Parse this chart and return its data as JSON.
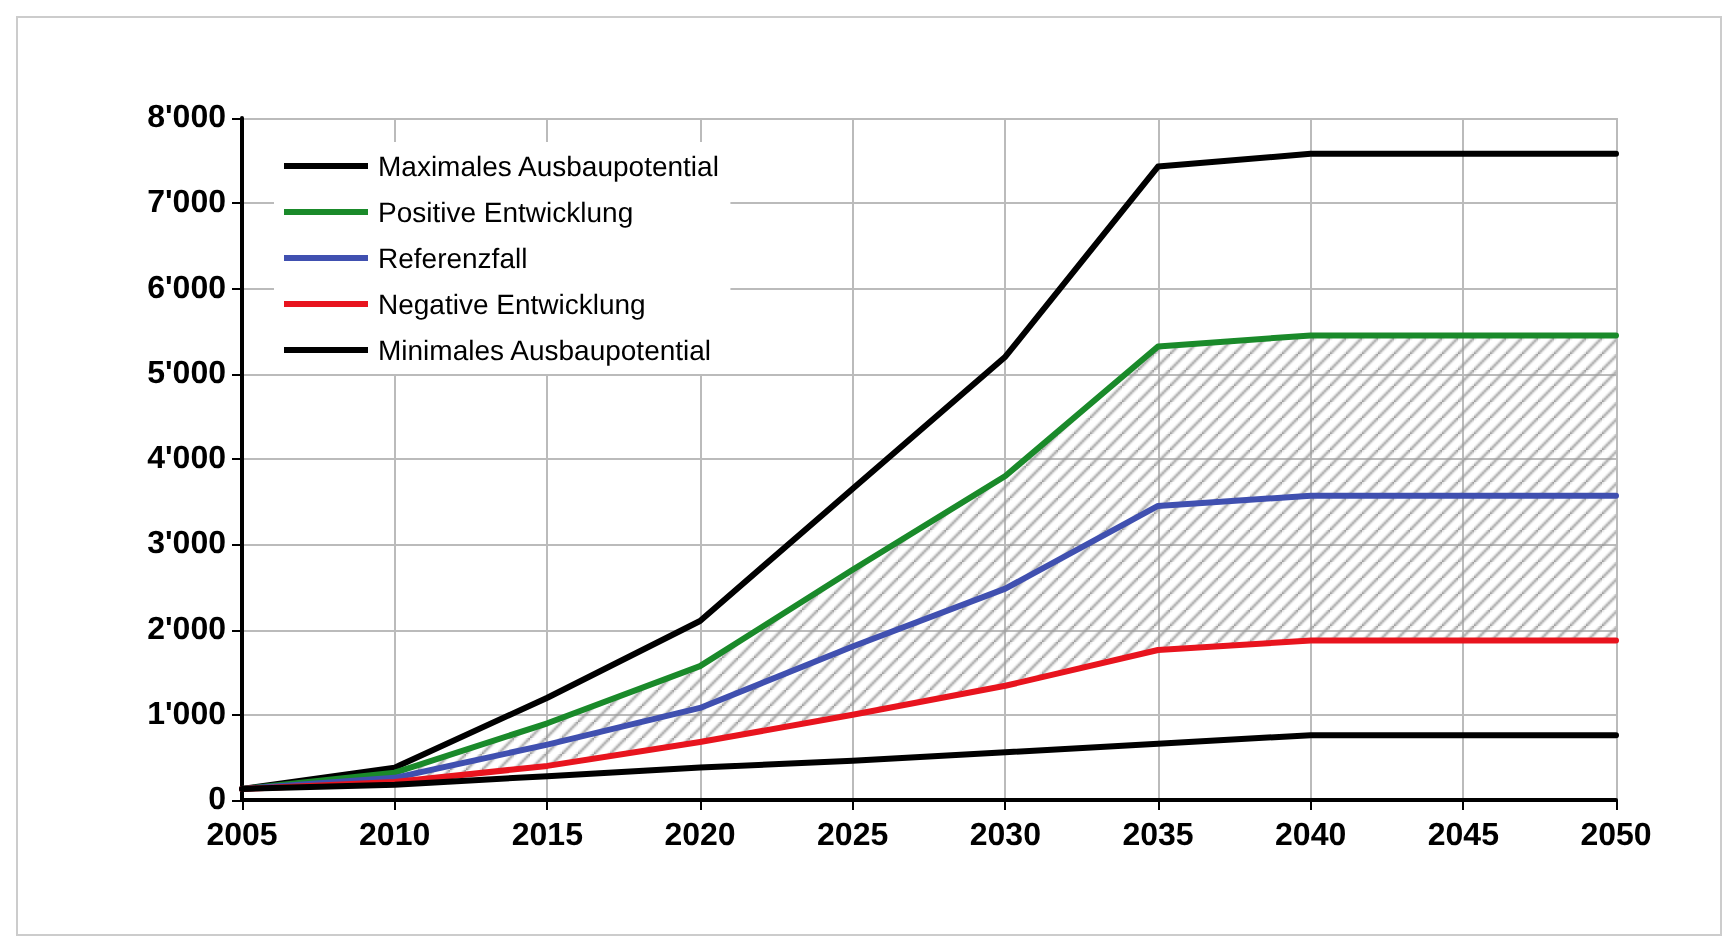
{
  "chart_data": {
    "type": "line",
    "x": [
      2005,
      2010,
      2015,
      2020,
      2025,
      2030,
      2035,
      2040,
      2045,
      2050
    ],
    "series": [
      {
        "name": "Maximales Ausbaupotential",
        "color": "#000000",
        "values": [
          130,
          380,
          1200,
          2100,
          3650,
          5200,
          7430,
          7580,
          7580,
          7580
        ]
      },
      {
        "name": "Positive Entwicklung",
        "color": "#1a8a2a",
        "values": [
          130,
          320,
          900,
          1570,
          2700,
          3800,
          5320,
          5450,
          5450,
          5450
        ]
      },
      {
        "name": "Referenzfall",
        "color": "#4050b0",
        "values": [
          130,
          260,
          650,
          1080,
          1800,
          2480,
          3450,
          3570,
          3570,
          3570
        ],
        "lower": [
          130,
          210,
          400,
          680,
          1000,
          1340,
          1760,
          1870,
          1870,
          1870
        ],
        "upper": [
          130,
          320,
          900,
          1570,
          2700,
          3800,
          5320,
          5450,
          5450,
          5450
        ]
      },
      {
        "name": "Negative Entwicklung",
        "color": "#e8141e",
        "values": [
          130,
          210,
          400,
          680,
          1000,
          1340,
          1760,
          1870,
          1870,
          1870
        ]
      },
      {
        "name": "Minimales Ausbaupotential",
        "color": "#000000",
        "values": [
          130,
          180,
          280,
          380,
          460,
          560,
          660,
          760,
          760,
          760
        ]
      }
    ],
    "xlim": [
      2005,
      2050
    ],
    "xticks": [
      2005,
      2010,
      2015,
      2020,
      2025,
      2030,
      2035,
      2040,
      2045,
      2050
    ],
    "ylim": [
      0,
      8000
    ],
    "yticks": [
      0,
      {
        "value": 1000,
        "label": "1'000"
      },
      {
        "value": 2000,
        "label": "2'000"
      },
      {
        "value": 3000,
        "label": "3'000"
      },
      {
        "value": 4000,
        "label": "4'000"
      },
      {
        "value": 5000,
        "label": "5'000"
      },
      {
        "value": 6000,
        "label": "6'000"
      },
      {
        "value": 7000,
        "label": "7'000"
      },
      {
        "value": 8000,
        "label": "8'000"
      }
    ],
    "grid": true,
    "legend": "top left",
    "marker": "none",
    "line_style": "solid"
  }
}
